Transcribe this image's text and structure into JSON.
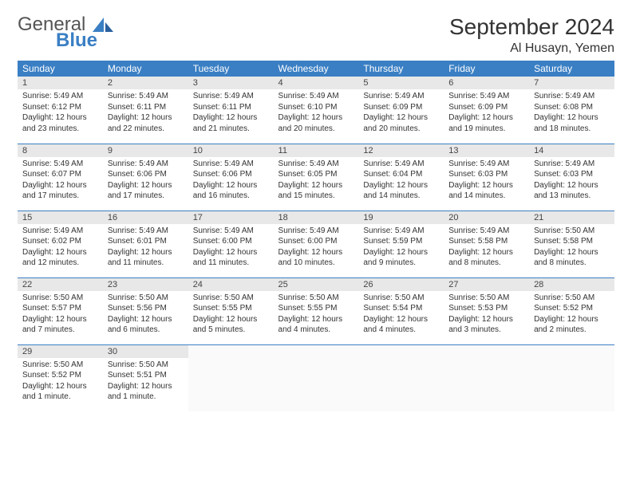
{
  "brand": {
    "word1": "General",
    "word2": "Blue"
  },
  "title": "September 2024",
  "location": "Al Husayn, Yemen",
  "colors": {
    "header_bg": "#3a7fc4",
    "header_text": "#ffffff",
    "daynum_bg": "#e8e8e8",
    "row_border": "#3a7fc4",
    "body_text": "#333333"
  },
  "weekdays": [
    "Sunday",
    "Monday",
    "Tuesday",
    "Wednesday",
    "Thursday",
    "Friday",
    "Saturday"
  ],
  "weeks": [
    [
      {
        "d": "1",
        "sr": "Sunrise: 5:49 AM",
        "ss": "Sunset: 6:12 PM",
        "dl1": "Daylight: 12 hours",
        "dl2": "and 23 minutes."
      },
      {
        "d": "2",
        "sr": "Sunrise: 5:49 AM",
        "ss": "Sunset: 6:11 PM",
        "dl1": "Daylight: 12 hours",
        "dl2": "and 22 minutes."
      },
      {
        "d": "3",
        "sr": "Sunrise: 5:49 AM",
        "ss": "Sunset: 6:11 PM",
        "dl1": "Daylight: 12 hours",
        "dl2": "and 21 minutes."
      },
      {
        "d": "4",
        "sr": "Sunrise: 5:49 AM",
        "ss": "Sunset: 6:10 PM",
        "dl1": "Daylight: 12 hours",
        "dl2": "and 20 minutes."
      },
      {
        "d": "5",
        "sr": "Sunrise: 5:49 AM",
        "ss": "Sunset: 6:09 PM",
        "dl1": "Daylight: 12 hours",
        "dl2": "and 20 minutes."
      },
      {
        "d": "6",
        "sr": "Sunrise: 5:49 AM",
        "ss": "Sunset: 6:09 PM",
        "dl1": "Daylight: 12 hours",
        "dl2": "and 19 minutes."
      },
      {
        "d": "7",
        "sr": "Sunrise: 5:49 AM",
        "ss": "Sunset: 6:08 PM",
        "dl1": "Daylight: 12 hours",
        "dl2": "and 18 minutes."
      }
    ],
    [
      {
        "d": "8",
        "sr": "Sunrise: 5:49 AM",
        "ss": "Sunset: 6:07 PM",
        "dl1": "Daylight: 12 hours",
        "dl2": "and 17 minutes."
      },
      {
        "d": "9",
        "sr": "Sunrise: 5:49 AM",
        "ss": "Sunset: 6:06 PM",
        "dl1": "Daylight: 12 hours",
        "dl2": "and 17 minutes."
      },
      {
        "d": "10",
        "sr": "Sunrise: 5:49 AM",
        "ss": "Sunset: 6:06 PM",
        "dl1": "Daylight: 12 hours",
        "dl2": "and 16 minutes."
      },
      {
        "d": "11",
        "sr": "Sunrise: 5:49 AM",
        "ss": "Sunset: 6:05 PM",
        "dl1": "Daylight: 12 hours",
        "dl2": "and 15 minutes."
      },
      {
        "d": "12",
        "sr": "Sunrise: 5:49 AM",
        "ss": "Sunset: 6:04 PM",
        "dl1": "Daylight: 12 hours",
        "dl2": "and 14 minutes."
      },
      {
        "d": "13",
        "sr": "Sunrise: 5:49 AM",
        "ss": "Sunset: 6:03 PM",
        "dl1": "Daylight: 12 hours",
        "dl2": "and 14 minutes."
      },
      {
        "d": "14",
        "sr": "Sunrise: 5:49 AM",
        "ss": "Sunset: 6:03 PM",
        "dl1": "Daylight: 12 hours",
        "dl2": "and 13 minutes."
      }
    ],
    [
      {
        "d": "15",
        "sr": "Sunrise: 5:49 AM",
        "ss": "Sunset: 6:02 PM",
        "dl1": "Daylight: 12 hours",
        "dl2": "and 12 minutes."
      },
      {
        "d": "16",
        "sr": "Sunrise: 5:49 AM",
        "ss": "Sunset: 6:01 PM",
        "dl1": "Daylight: 12 hours",
        "dl2": "and 11 minutes."
      },
      {
        "d": "17",
        "sr": "Sunrise: 5:49 AM",
        "ss": "Sunset: 6:00 PM",
        "dl1": "Daylight: 12 hours",
        "dl2": "and 11 minutes."
      },
      {
        "d": "18",
        "sr": "Sunrise: 5:49 AM",
        "ss": "Sunset: 6:00 PM",
        "dl1": "Daylight: 12 hours",
        "dl2": "and 10 minutes."
      },
      {
        "d": "19",
        "sr": "Sunrise: 5:49 AM",
        "ss": "Sunset: 5:59 PM",
        "dl1": "Daylight: 12 hours",
        "dl2": "and 9 minutes."
      },
      {
        "d": "20",
        "sr": "Sunrise: 5:49 AM",
        "ss": "Sunset: 5:58 PM",
        "dl1": "Daylight: 12 hours",
        "dl2": "and 8 minutes."
      },
      {
        "d": "21",
        "sr": "Sunrise: 5:50 AM",
        "ss": "Sunset: 5:58 PM",
        "dl1": "Daylight: 12 hours",
        "dl2": "and 8 minutes."
      }
    ],
    [
      {
        "d": "22",
        "sr": "Sunrise: 5:50 AM",
        "ss": "Sunset: 5:57 PM",
        "dl1": "Daylight: 12 hours",
        "dl2": "and 7 minutes."
      },
      {
        "d": "23",
        "sr": "Sunrise: 5:50 AM",
        "ss": "Sunset: 5:56 PM",
        "dl1": "Daylight: 12 hours",
        "dl2": "and 6 minutes."
      },
      {
        "d": "24",
        "sr": "Sunrise: 5:50 AM",
        "ss": "Sunset: 5:55 PM",
        "dl1": "Daylight: 12 hours",
        "dl2": "and 5 minutes."
      },
      {
        "d": "25",
        "sr": "Sunrise: 5:50 AM",
        "ss": "Sunset: 5:55 PM",
        "dl1": "Daylight: 12 hours",
        "dl2": "and 4 minutes."
      },
      {
        "d": "26",
        "sr": "Sunrise: 5:50 AM",
        "ss": "Sunset: 5:54 PM",
        "dl1": "Daylight: 12 hours",
        "dl2": "and 4 minutes."
      },
      {
        "d": "27",
        "sr": "Sunrise: 5:50 AM",
        "ss": "Sunset: 5:53 PM",
        "dl1": "Daylight: 12 hours",
        "dl2": "and 3 minutes."
      },
      {
        "d": "28",
        "sr": "Sunrise: 5:50 AM",
        "ss": "Sunset: 5:52 PM",
        "dl1": "Daylight: 12 hours",
        "dl2": "and 2 minutes."
      }
    ],
    [
      {
        "d": "29",
        "sr": "Sunrise: 5:50 AM",
        "ss": "Sunset: 5:52 PM",
        "dl1": "Daylight: 12 hours",
        "dl2": "and 1 minute."
      },
      {
        "d": "30",
        "sr": "Sunrise: 5:50 AM",
        "ss": "Sunset: 5:51 PM",
        "dl1": "Daylight: 12 hours",
        "dl2": "and 1 minute."
      },
      null,
      null,
      null,
      null,
      null
    ]
  ]
}
